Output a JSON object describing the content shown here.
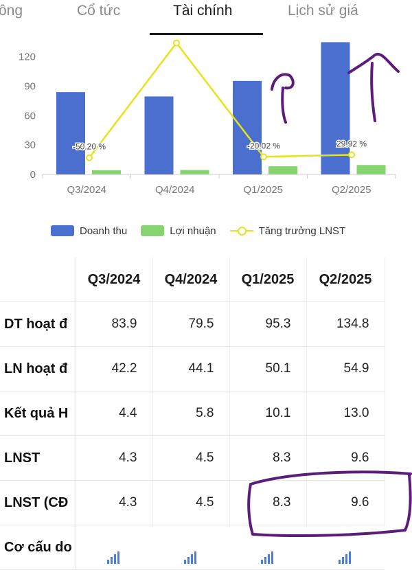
{
  "tabs": [
    {
      "label": "ông",
      "active": false
    },
    {
      "label": "Cổ tức",
      "active": false
    },
    {
      "label": "Tài chính",
      "active": true
    },
    {
      "label": "Lịch sử giá",
      "active": false
    }
  ],
  "chart_data": {
    "type": "bar",
    "categories": [
      "Q3/2024",
      "Q4/2024",
      "Q1/2025",
      "Q2/2025"
    ],
    "series": [
      {
        "name": "Doanh thu",
        "type": "bar",
        "color": "#4a6fcf",
        "values": [
          83.9,
          79.5,
          95.3,
          134.8
        ]
      },
      {
        "name": "Lợi nhuận",
        "type": "bar",
        "color": "#86d46f",
        "values": [
          4.3,
          4.5,
          8.3,
          9.6
        ]
      },
      {
        "name": "Tăng trưởng LNST",
        "type": "line",
        "color": "#e8e21a",
        "values": [
          17,
          134,
          18,
          20
        ],
        "labels": [
          "-50.20 %",
          "",
          "-20.02 %",
          "29.92 %"
        ]
      }
    ],
    "yticks": [
      0,
      30,
      60,
      90,
      120
    ],
    "ylim": [
      0,
      140
    ],
    "grid": false,
    "legend": "bottom",
    "xlabel": "",
    "ylabel": ""
  },
  "table": {
    "headers": [
      "",
      "Q3/2024",
      "Q4/2024",
      "Q1/2025",
      "Q2/2025"
    ],
    "rows": [
      {
        "label": "DT hoạt đ",
        "values": [
          "83.9",
          "79.5",
          "95.3",
          "134.8"
        ]
      },
      {
        "label": "LN hoạt đ",
        "values": [
          "42.2",
          "44.1",
          "50.1",
          "54.9"
        ]
      },
      {
        "label": "Kết quả H",
        "values": [
          "4.4",
          "5.8",
          "10.1",
          "13.0"
        ]
      },
      {
        "label": "LNST",
        "values": [
          "4.3",
          "4.5",
          "8.3",
          "9.6"
        ]
      },
      {
        "label": "LNST (CĐ",
        "values": [
          "4.3",
          "4.5",
          "8.3",
          "9.6"
        ]
      },
      {
        "label": "Cơ cấu do",
        "values": [
          "",
          "",
          "",
          ""
        ],
        "icon": "mini-bar-chart-icon"
      }
    ]
  },
  "colors": {
    "annotation": "#5b1c7a",
    "accent": "#4a6fcf"
  }
}
